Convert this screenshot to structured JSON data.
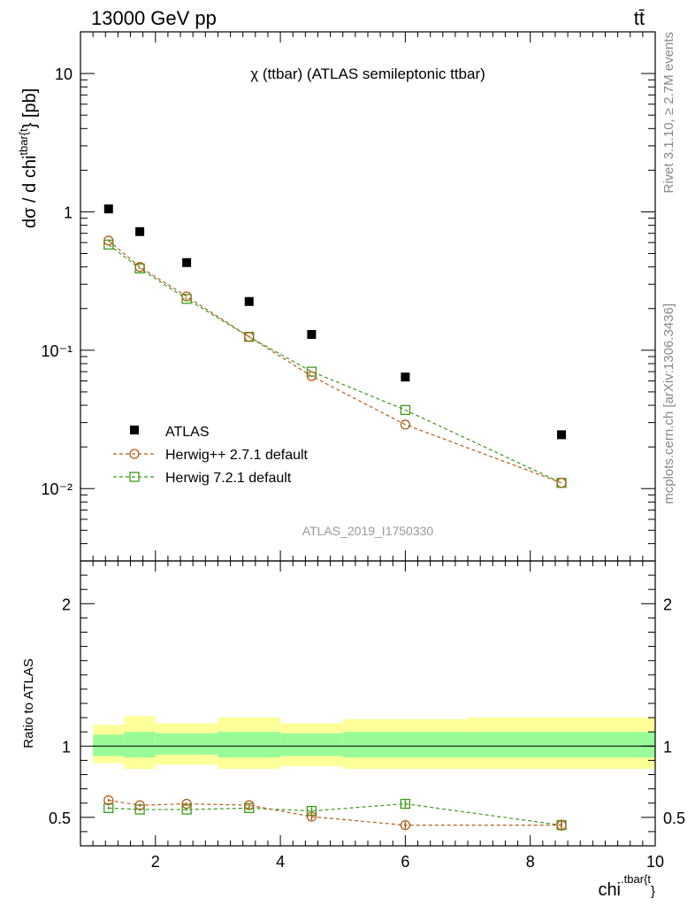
{
  "header": {
    "energy_label": "13000 GeV pp",
    "process_label": "tt̄",
    "plot_title": "χ (ttbar) (ATLAS semileptonic ttbar)",
    "analysis_id": "ATLAS_2019_I1750330",
    "side_label_top": "Rivet 3.1.10, ≥ 2.7M events",
    "side_label_bottom": "mcplots.cern.ch [arXiv:1306.3436]"
  },
  "axes": {
    "ylabel_main_prefix": "dσ / d chi",
    "ylabel_main_sup": "tbar{t",
    "ylabel_main_suffix": "} [pb]",
    "ylabel_ratio": "Ratio to ATLAS",
    "xlabel_base": "chi",
    "xlabel_sup": ".tbar{t",
    "xlabel_sub": "}",
    "main_tick_labels": [
      "10⁻²",
      "10⁻¹",
      "1",
      "10"
    ],
    "ratio_tick_labels": [
      "0.5",
      "1",
      "2"
    ],
    "x_tick_labels": [
      "2",
      "4",
      "6",
      "8",
      "10"
    ]
  },
  "legend": {
    "atlas": "ATLAS",
    "herwigpp": "Herwig++ 2.7.1 default",
    "herwig7": "Herwig 7.2.1 default"
  },
  "colors": {
    "data": "#000000",
    "herwigpp": "#b15f1a",
    "herwig7": "#3a9a1a",
    "band_inner": "#98fb98",
    "band_outer": "#ffff99"
  },
  "chart_data": [
    {
      "type": "scatter",
      "panel": "main",
      "log_y": true,
      "xlim": [
        0.8,
        10
      ],
      "ylim": [
        0.003,
        20
      ],
      "bin_edges": [
        1,
        1.5,
        2,
        3,
        4,
        5,
        7,
        10
      ],
      "x": [
        1.25,
        1.75,
        2.5,
        3.5,
        4.5,
        6,
        8.5
      ],
      "series": [
        {
          "name": "ATLAS",
          "values": [
            1.05,
            0.72,
            0.43,
            0.225,
            0.13,
            0.064,
            0.0245
          ]
        },
        {
          "name": "Herwig++ 2.7.1 default",
          "values": [
            0.62,
            0.4,
            0.245,
            0.125,
            0.065,
            0.029,
            0.011
          ]
        },
        {
          "name": "Herwig 7.2.1 default",
          "values": [
            0.58,
            0.39,
            0.235,
            0.125,
            0.07,
            0.037,
            0.011
          ]
        }
      ]
    },
    {
      "type": "scatter",
      "panel": "ratio",
      "ylim": [
        0.3,
        2.3
      ],
      "ylabel": "Ratio to ATLAS",
      "x": [
        1.25,
        1.75,
        2.5,
        3.5,
        4.5,
        6,
        8.5
      ],
      "band": {
        "bin_edges": [
          1,
          1.5,
          2,
          3,
          4,
          5,
          7,
          10
        ],
        "inner_lo": [
          0.93,
          0.92,
          0.94,
          0.92,
          0.93,
          0.92,
          0.92
        ],
        "inner_hi": [
          1.08,
          1.1,
          1.09,
          1.1,
          1.09,
          1.1,
          1.1
        ],
        "outer_lo": [
          0.88,
          0.84,
          0.87,
          0.84,
          0.86,
          0.84,
          0.84
        ],
        "outer_hi": [
          1.15,
          1.21,
          1.16,
          1.2,
          1.16,
          1.19,
          1.2
        ]
      },
      "series": [
        {
          "name": "Herwig++ 2.7.1 default",
          "values": [
            0.62,
            0.585,
            0.595,
            0.585,
            0.505,
            0.445,
            0.445
          ],
          "errors": [
            0.01,
            0.01,
            0.01,
            0.012,
            0.025,
            0.025,
            0.04
          ]
        },
        {
          "name": "Herwig 7.2.1 default",
          "values": [
            0.565,
            0.555,
            0.555,
            0.565,
            0.545,
            0.595,
            0.445
          ],
          "errors": [
            0.01,
            0.01,
            0.01,
            0.012,
            0.025,
            0.025,
            0.04
          ]
        }
      ]
    }
  ]
}
